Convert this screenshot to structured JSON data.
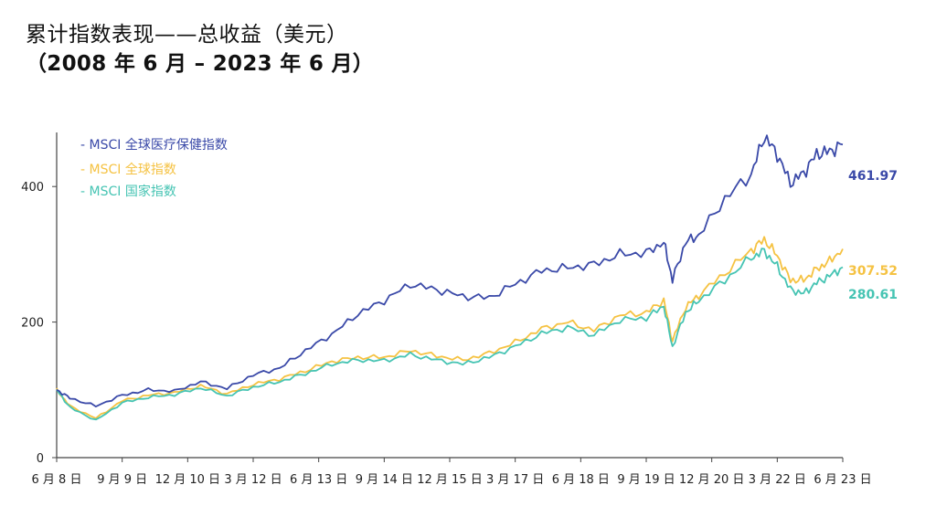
{
  "title": {
    "line1": "累计指数表现——总收益（美元）",
    "line2": "（2008 年 6 月 – 2023 年 6 月）"
  },
  "chart_data": {
    "type": "line",
    "title": "累计指数表现——总收益（美元）（2008 年 6 月 – 2023 年 6 月）",
    "ylim": [
      0,
      500
    ],
    "y_ticks": [
      0,
      200,
      400
    ],
    "x_tick_labels": [
      "6 月 8 日",
      "9 月 9 日",
      "12 月 10 日",
      "3 月 12 日",
      "6 月 13 日",
      "9 月 14 日",
      "12 月 15 日",
      "3 月 17 日",
      "6 月 18 日",
      "9 月 19 日",
      "12 月 20 日",
      "3 月 22 日",
      "6 月 23 日"
    ],
    "x": [
      "2008-06",
      "2008-09",
      "2009-03",
      "2009-09",
      "2010-03",
      "2010-09",
      "2011-03",
      "2011-09",
      "2012-03",
      "2012-09",
      "2013-03",
      "2013-09",
      "2014-03",
      "2014-09",
      "2015-03",
      "2015-09",
      "2016-03",
      "2016-09",
      "2017-03",
      "2017-09",
      "2018-03",
      "2018-09",
      "2019-03",
      "2019-09",
      "2020-01",
      "2020-03",
      "2020-06",
      "2020-09",
      "2021-03",
      "2021-09",
      "2021-12",
      "2022-03",
      "2022-06",
      "2022-09",
      "2022-12",
      "2023-03",
      "2023-06"
    ],
    "series": [
      {
        "name": "MSCI 全球医疗保健指数",
        "color": "#3a49a8",
        "end_label": "461.97",
        "values": [
          100,
          88,
          76,
          92,
          100,
          98,
          112,
          102,
          122,
          132,
          158,
          182,
          212,
          232,
          256,
          248,
          238,
          236,
          256,
          276,
          280,
          285,
          300,
          302,
          318,
          262,
          318,
          328,
          382,
          418,
          474,
          448,
          405,
          420,
          448,
          452,
          462
        ]
      },
      {
        "name": "MSCI 全球指数",
        "color": "#f5c242",
        "end_label": "307.52",
        "values": [
          100,
          76,
          58,
          84,
          92,
          96,
          106,
          94,
          108,
          116,
          128,
          142,
          148,
          148,
          158,
          150,
          144,
          154,
          170,
          190,
          200,
          188,
          210,
          214,
          232,
          172,
          222,
          240,
          272,
          306,
          322,
          298,
          262,
          262,
          278,
          290,
          308
        ]
      },
      {
        "name": "MSCI 国家指数",
        "color": "#46c4b3",
        "end_label": "280.61",
        "values": [
          100,
          74,
          55,
          81,
          89,
          93,
          103,
          91,
          104,
          112,
          124,
          138,
          144,
          143,
          152,
          144,
          138,
          148,
          164,
          183,
          192,
          181,
          203,
          206,
          224,
          163,
          214,
          232,
          262,
          295,
          305,
          282,
          248,
          242,
          258,
          268,
          281
        ]
      }
    ]
  }
}
